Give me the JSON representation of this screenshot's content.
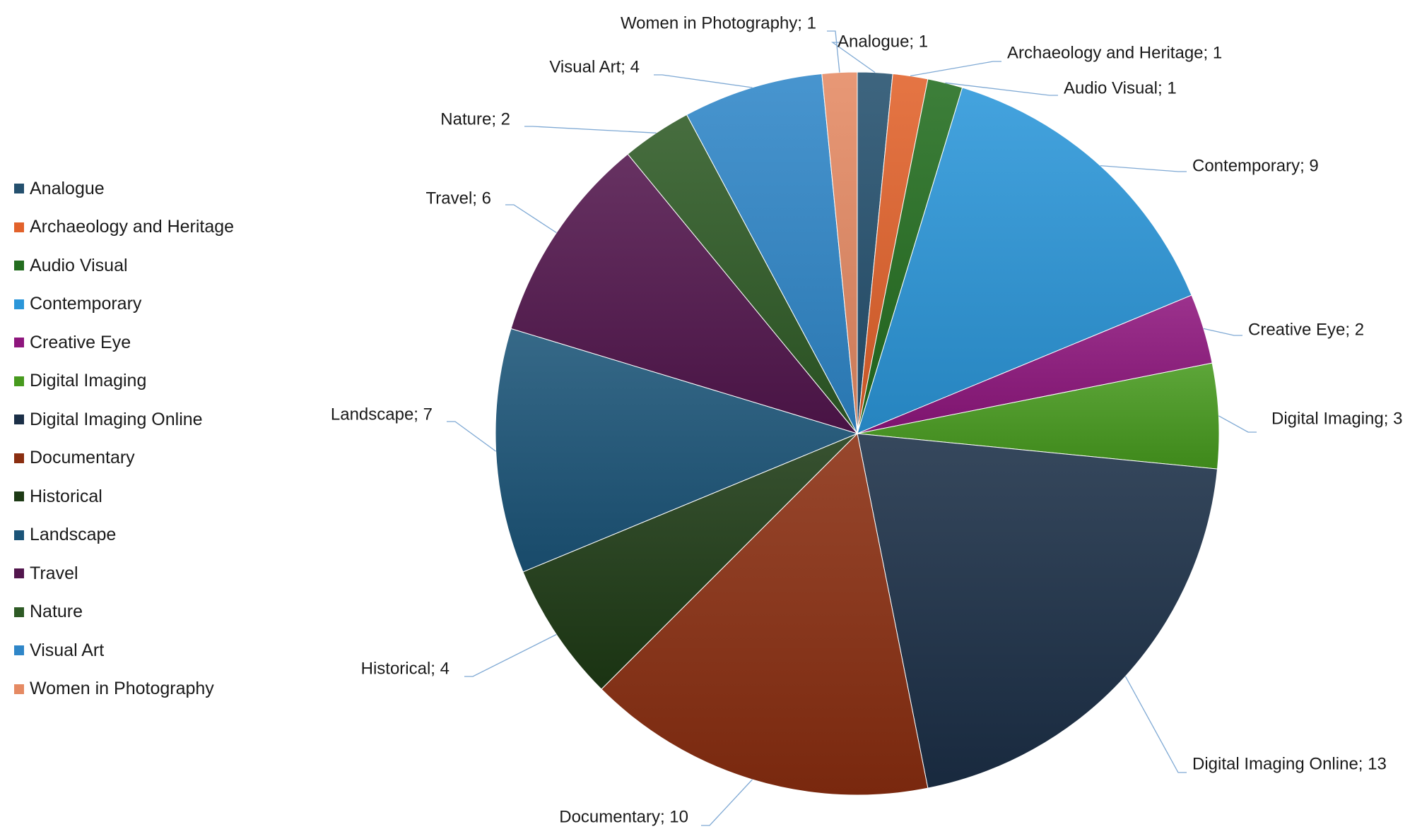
{
  "chart_data": {
    "type": "pie",
    "title": "",
    "legend_position": "left",
    "data_label_format": "category; value",
    "slices": [
      {
        "category": "Analogue",
        "value": 1,
        "color": "#24506E"
      },
      {
        "category": "Archaeology and Heritage",
        "value": 1,
        "color": "#E2622B"
      },
      {
        "category": "Audio Visual",
        "value": 1,
        "color": "#236D1F"
      },
      {
        "category": "Contemporary",
        "value": 9,
        "color": "#2B96D9"
      },
      {
        "category": "Creative Eye",
        "value": 2,
        "color": "#8E167D"
      },
      {
        "category": "Digital Imaging",
        "value": 3,
        "color": "#479A1E"
      },
      {
        "category": "Digital Imaging Online",
        "value": 13,
        "color": "#1B2F47"
      },
      {
        "category": "Documentary",
        "value": 10,
        "color": "#8A2E10"
      },
      {
        "category": "Historical",
        "value": 4,
        "color": "#1D3A15"
      },
      {
        "category": "Landscape",
        "value": 7,
        "color": "#1B5478"
      },
      {
        "category": "Travel",
        "value": 6,
        "color": "#52164D"
      },
      {
        "category": "Nature",
        "value": 2,
        "color": "#2E5A25"
      },
      {
        "category": "Visual Art",
        "value": 4,
        "color": "#2F86C8"
      },
      {
        "category": "Women in Photography",
        "value": 1,
        "color": "#E58A63"
      }
    ]
  }
}
